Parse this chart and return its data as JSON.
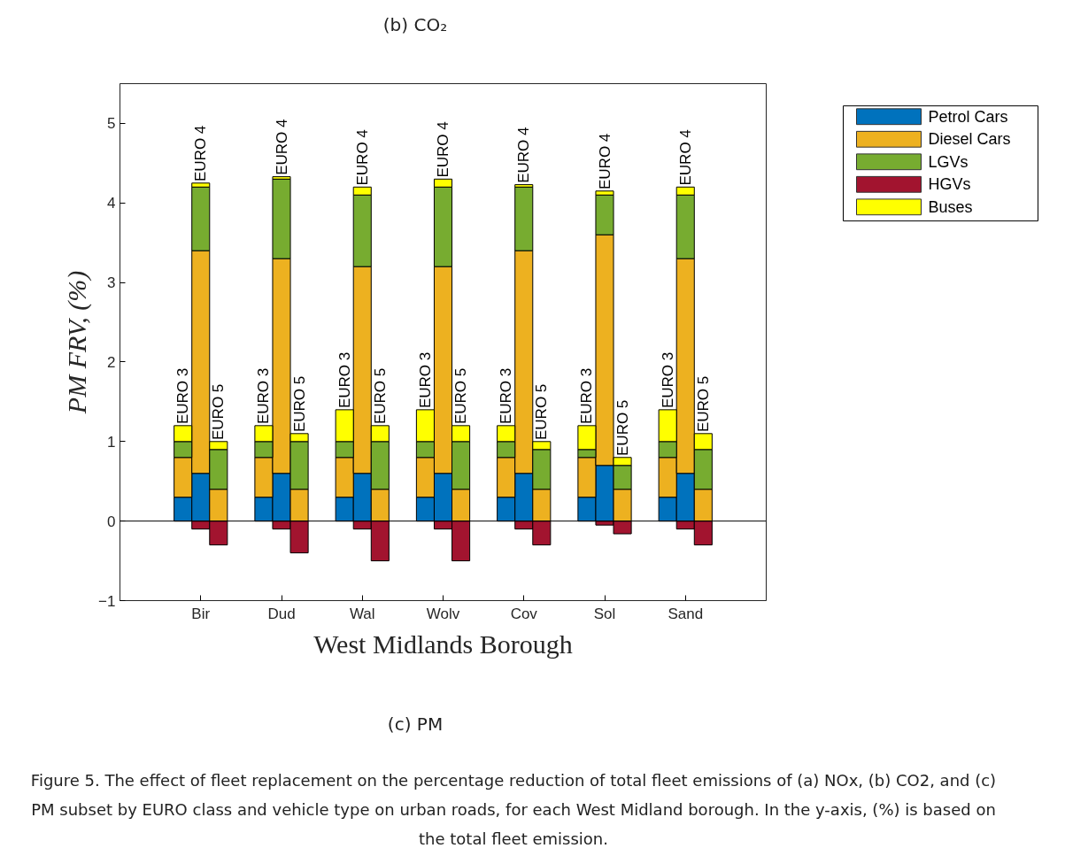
{
  "chart_data": {
    "type": "bar",
    "stacked": true,
    "ylabel": "PM FRV, (%)",
    "xlabel": "West Midlands Borough",
    "categories": [
      null,
      "Bir",
      null,
      null,
      "Dud",
      null,
      null,
      "Wal",
      null,
      null,
      "Wolv",
      null,
      null,
      "Cov",
      null,
      null,
      "Sol",
      null,
      null,
      "Sand",
      null
    ],
    "series": [
      {
        "name": "Petrol Cars",
        "color": "#0072bd",
        "values": [
          0.3,
          0.6,
          0,
          0.3,
          0.6,
          0,
          0.3,
          0.6,
          0,
          0.3,
          0.6,
          0,
          0.3,
          0.6,
          0,
          0.3,
          0.7,
          0,
          0.3,
          0.6,
          0
        ]
      },
      {
        "name": "Diesel Cars",
        "color": "#edb120",
        "values": [
          0.5,
          2.8,
          0.4,
          0.5,
          2.7,
          0.4,
          0.5,
          2.6,
          0.4,
          0.5,
          2.6,
          0.4,
          0.5,
          2.8,
          0.4,
          0.5,
          2.9,
          0.4,
          0.5,
          2.7,
          0.4
        ]
      },
      {
        "name": "LGVs",
        "color": "#77ac30",
        "values": [
          0.2,
          0.8,
          0.5,
          0.2,
          1.0,
          0.6,
          0.2,
          0.9,
          0.6,
          0.2,
          1.0,
          0.6,
          0.2,
          0.8,
          0.5,
          0.1,
          0.5,
          0.3,
          0.2,
          0.8,
          0.5
        ]
      },
      {
        "name": "HGVs",
        "color": "#a2142f",
        "values": [
          0,
          -0.1,
          -0.3,
          0,
          -0.1,
          -0.4,
          0,
          -0.1,
          -0.5,
          0,
          -0.1,
          -0.5,
          0,
          -0.1,
          -0.3,
          0,
          -0.05,
          -0.16,
          0,
          -0.1,
          -0.3
        ]
      },
      {
        "name": "Buses",
        "color": "#ffff00",
        "values": [
          0.2,
          0.05,
          0.1,
          0.2,
          0.03,
          0.1,
          0.4,
          0.1,
          0.2,
          0.4,
          0.1,
          0.2,
          0.2,
          0.03,
          0.1,
          0.3,
          0.05,
          0.1,
          0.4,
          0.1,
          0.2
        ],
        "value_labels": [
          "EURO 3",
          "EURO 4",
          "EURO 5",
          "EURO 3",
          "EURO 4",
          "EURO 5",
          "EURO 3",
          "EURO 4",
          "EURO 5",
          "EURO 3",
          "EURO 4",
          "EURO 5",
          "EURO 3",
          "EURO 4",
          "EURO 5",
          "EURO 3",
          "EURO 4",
          "EURO 5",
          "EURO 3",
          "EURO 4",
          "EURO 5"
        ]
      }
    ],
    "ylim": [
      -1,
      5.5
    ],
    "yticks": [
      -1,
      0,
      1,
      2,
      3,
      4,
      5
    ],
    "grid": false,
    "legend": "top right",
    "ref_lines": [
      {
        "axis": "y",
        "value": 0
      }
    ],
    "annotations": [
      "(b)  CO₂",
      "(c)  PM",
      "Figure 5. The effect of fleet replacement on the percentage reduction of total fleet emissions of (a) NOx, (b) CO2, and (c) PM subset by EURO class and vehicle type on urban roads, for each West Midland borough. In the y-axis, (%) is based on the total fleet emission."
    ]
  }
}
